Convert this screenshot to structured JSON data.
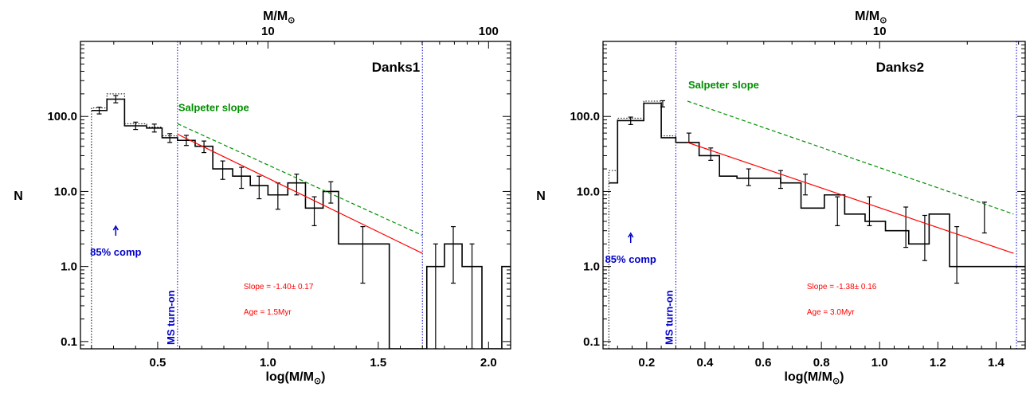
{
  "chart_data": [
    {
      "type": "step-histogram",
      "panel_label": "Danks1",
      "xlabel": "log(M/M",
      "xlabel_sub": "⊙",
      "xlabel_close": ")",
      "ylabel": "N",
      "top_axis_label": "M/M",
      "top_axis_label_sub": "⊙",
      "xlim": [
        0.15,
        2.1
      ],
      "ylim": [
        0.08,
        1000
      ],
      "yscale": "log",
      "x_ticks": [
        0.5,
        1.0,
        1.5,
        2.0
      ],
      "x_tick_labels": [
        "0.5",
        "1.0",
        "1.5",
        "2.0"
      ],
      "y_ticks": [
        0.1,
        1.0,
        10.0,
        100.0
      ],
      "y_tick_labels": [
        "0.1",
        "1.0",
        "10.0",
        "100.0"
      ],
      "top_ticks": [
        1.0,
        2.0
      ],
      "top_tick_labels": [
        "10",
        "100"
      ],
      "histogram": {
        "edges": [
          0.2,
          0.27,
          0.35,
          0.45,
          0.52,
          0.59,
          0.67,
          0.75,
          0.84,
          0.92,
          1.0,
          1.09,
          1.17,
          1.25,
          1.32,
          1.41,
          1.55,
          1.72,
          1.8,
          1.88,
          1.97,
          2.06,
          2.1
        ],
        "counts": [
          120,
          170,
          75,
          70,
          52,
          48,
          40,
          20,
          16,
          12,
          9,
          13,
          6,
          10,
          2,
          2,
          0.05,
          1,
          2,
          1,
          0.05,
          1
        ]
      },
      "dotted_histogram": {
        "edges": [
          0.2,
          0.27,
          0.35,
          0.45,
          0.52,
          0.59
        ],
        "counts": [
          130,
          200,
          80,
          72,
          55
        ]
      },
      "error_bars": [
        {
          "x": 0.235,
          "y": 120,
          "lo": 108,
          "hi": 133
        },
        {
          "x": 0.31,
          "y": 170,
          "lo": 152,
          "hi": 190
        },
        {
          "x": 0.4,
          "y": 75,
          "lo": 67,
          "hi": 84
        },
        {
          "x": 0.485,
          "y": 70,
          "lo": 62,
          "hi": 79
        },
        {
          "x": 0.555,
          "y": 52,
          "lo": 45,
          "hi": 59
        },
        {
          "x": 0.63,
          "y": 48,
          "lo": 41,
          "hi": 56
        },
        {
          "x": 0.71,
          "y": 40,
          "lo": 33,
          "hi": 47
        },
        {
          "x": 0.795,
          "y": 20,
          "lo": 14.5,
          "hi": 25.5
        },
        {
          "x": 0.88,
          "y": 16,
          "lo": 11,
          "hi": 21
        },
        {
          "x": 0.96,
          "y": 12,
          "lo": 8,
          "hi": 16
        },
        {
          "x": 1.045,
          "y": 9,
          "lo": 5.8,
          "hi": 13
        },
        {
          "x": 1.13,
          "y": 13,
          "lo": 9,
          "hi": 17
        },
        {
          "x": 1.21,
          "y": 6,
          "lo": 3.5,
          "hi": 8.5
        },
        {
          "x": 1.285,
          "y": 10,
          "lo": 7,
          "hi": 13.5
        },
        {
          "x": 1.43,
          "y": 2,
          "lo": 0.6,
          "hi": 3.4
        },
        {
          "x": 1.76,
          "y": 1,
          "lo": 0.08,
          "hi": 2
        },
        {
          "x": 1.84,
          "y": 2,
          "lo": 0.6,
          "hi": 3.4
        },
        {
          "x": 1.925,
          "y": 1,
          "lo": 0.08,
          "hi": 2
        }
      ],
      "fit_line": {
        "x": [
          0.59,
          1.7
        ],
        "y": [
          58,
          1.5
        ],
        "color": "#ff0000"
      },
      "salpeter_line": {
        "x": [
          0.59,
          1.7
        ],
        "y": [
          80,
          2.6
        ],
        "color": "#008f00",
        "label": "Salpeter slope"
      },
      "vlines": [
        0.59,
        1.7
      ],
      "vline_label": "MS turn-on",
      "completeness": {
        "x": 0.31,
        "label": "85% comp"
      },
      "slope_text": "Slope = -1.40± 0.17",
      "age_text": "Age = 1.5Myr"
    },
    {
      "type": "step-histogram",
      "panel_label": "Danks2",
      "xlabel": "log(M/M",
      "xlabel_sub": "⊙",
      "xlabel_close": ")",
      "ylabel": "N",
      "top_axis_label": "M/M",
      "top_axis_label_sub": "⊙",
      "xlim": [
        0.05,
        1.5
      ],
      "ylim": [
        0.08,
        1000
      ],
      "yscale": "log",
      "x_ticks": [
        0.2,
        0.4,
        0.6,
        0.8,
        1.0,
        1.2,
        1.4
      ],
      "x_tick_labels": [
        "0.2",
        "0.4",
        "0.6",
        "0.8",
        "1.0",
        "1.2",
        "1.4"
      ],
      "y_ticks": [
        0.1,
        1.0,
        10.0,
        100.0
      ],
      "y_tick_labels": [
        "0.1",
        "1.0",
        "10.0",
        "100.0"
      ],
      "top_ticks": [
        1.0
      ],
      "top_tick_labels": [
        "10"
      ],
      "histogram": {
        "edges": [
          0.07,
          0.1,
          0.19,
          0.25,
          0.3,
          0.38,
          0.45,
          0.51,
          0.58,
          0.66,
          0.73,
          0.81,
          0.88,
          0.95,
          1.02,
          1.1,
          1.17,
          1.24,
          1.32,
          1.4,
          1.47,
          1.5
        ],
        "counts": [
          13,
          88,
          150,
          52,
          45,
          30,
          16,
          15,
          15,
          13,
          6,
          9,
          5,
          4,
          3,
          2,
          5,
          1,
          1,
          1,
          1
        ]
      },
      "dotted_histogram": {
        "edges": [
          0.07,
          0.1,
          0.19,
          0.25,
          0.3
        ],
        "counts": [
          19,
          95,
          160,
          55
        ]
      },
      "error_bars": [
        {
          "x": 0.145,
          "y": 88,
          "lo": 78,
          "hi": 98
        },
        {
          "x": 0.255,
          "y": 148,
          "lo": 134,
          "hi": 162
        },
        {
          "x": 0.345,
          "y": 52,
          "lo": 45,
          "hi": 60
        },
        {
          "x": 0.42,
          "y": 32,
          "lo": 26,
          "hi": 38
        },
        {
          "x": 0.55,
          "y": 16,
          "lo": 12,
          "hi": 20
        },
        {
          "x": 0.66,
          "y": 15,
          "lo": 11,
          "hi": 19
        },
        {
          "x": 0.745,
          "y": 13,
          "lo": 9,
          "hi": 17
        },
        {
          "x": 0.855,
          "y": 6,
          "lo": 3.5,
          "hi": 8.5
        },
        {
          "x": 0.965,
          "y": 6,
          "lo": 3.5,
          "hi": 8.5
        },
        {
          "x": 1.09,
          "y": 4,
          "lo": 1.8,
          "hi": 6.2
        },
        {
          "x": 1.155,
          "y": 3,
          "lo": 1.2,
          "hi": 4.8
        },
        {
          "x": 1.265,
          "y": 2,
          "lo": 0.6,
          "hi": 3.4
        },
        {
          "x": 1.36,
          "y": 5,
          "lo": 2.8,
          "hi": 7.2
        }
      ],
      "fit_line": {
        "x": [
          0.34,
          1.46
        ],
        "y": [
          45,
          1.5
        ],
        "color": "#ff0000"
      },
      "salpeter_line": {
        "x": [
          0.34,
          1.46
        ],
        "y": [
          160,
          5
        ],
        "color": "#008f00",
        "label": "Salpeter slope"
      },
      "vlines": [
        0.3,
        1.47
      ],
      "vline_label": "MS turn-on",
      "completeness": {
        "x": 0.145,
        "label": "85% comp"
      },
      "slope_text": "Slope = -1.38± 0.16",
      "age_text": "Age = 3.0Myr"
    }
  ]
}
